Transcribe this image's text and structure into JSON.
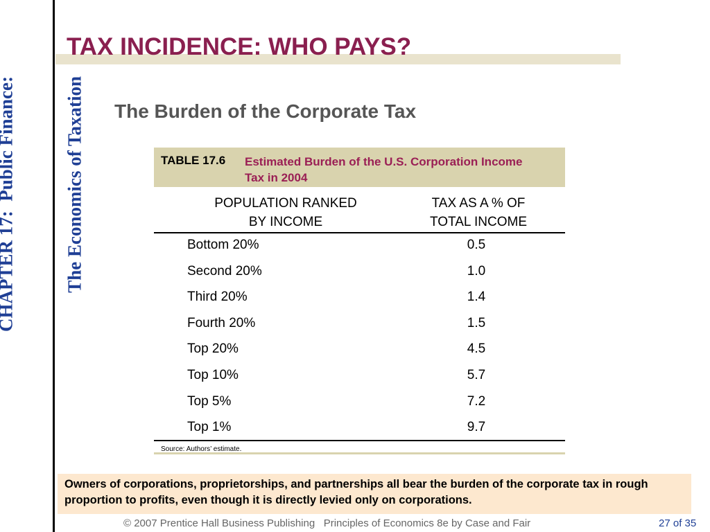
{
  "sidebar": {
    "lines": [
      "CHAPTER 17:  Public Finance:",
      "The Economics of Taxation"
    ]
  },
  "header": {
    "title": "TAX INCIDENCE: WHO PAYS?",
    "subtitle": "The Burden of the Corporate Tax"
  },
  "table": {
    "label": "TABLE 17.6",
    "caption": "Estimated Burden of the U.S. Corporation Income Tax in 2004",
    "columns": [
      [
        "POPULATION RANKED",
        "BY INCOME"
      ],
      [
        "TAX AS A % OF",
        "TOTAL INCOME"
      ]
    ],
    "rows": [
      [
        "Bottom 20%",
        "0.5"
      ],
      [
        "Second 20%",
        "1.0"
      ],
      [
        "Third 20%",
        "1.4"
      ],
      [
        "Fourth 20%",
        "1.5"
      ],
      [
        "Top 20%",
        "4.5"
      ],
      [
        "Top 10%",
        "5.7"
      ],
      [
        "Top 5%",
        "7.2"
      ],
      [
        "Top 1%",
        "9.7"
      ]
    ],
    "source": "Source:  Authors’ estimate."
  },
  "note": "Owners of corporations, proprietorships, and partnerships all bear the burden of the corporate tax in rough proportion to profits, even though it is directly levied only on corporations.",
  "footer": {
    "credit": "© 2007 Prentice Hall Business Publishing   Principles of Economics 8e by Case and Fair",
    "page": "27 of 35"
  }
}
